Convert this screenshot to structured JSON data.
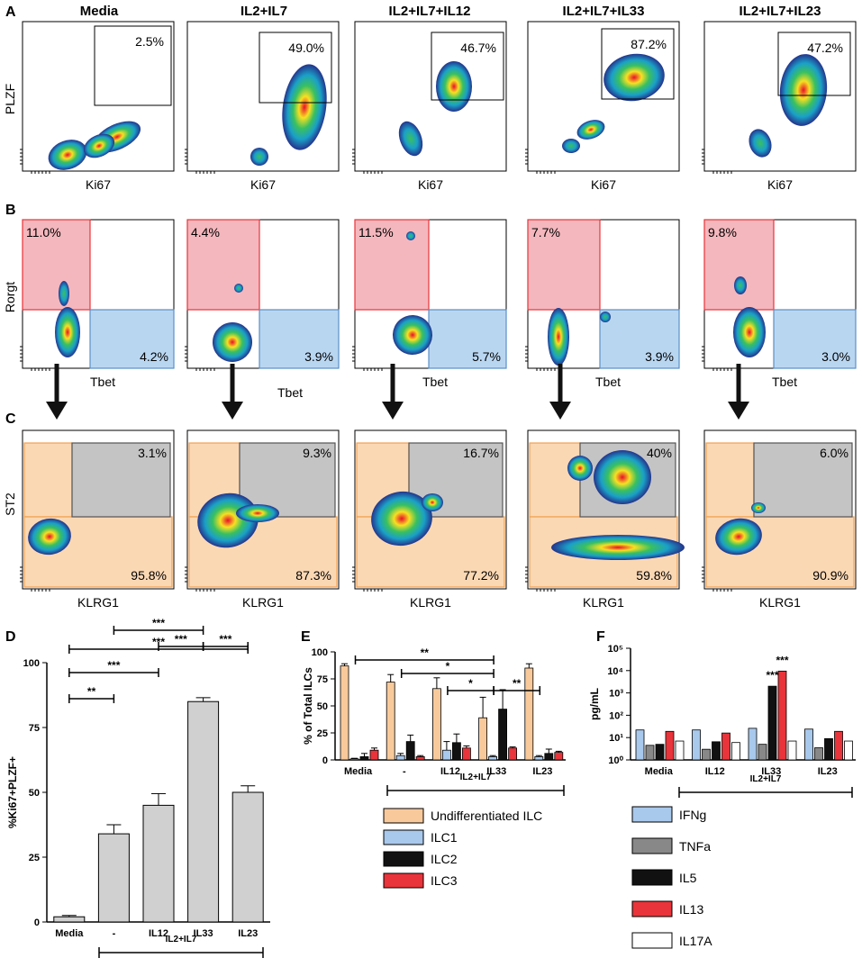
{
  "figure": {
    "panel_letters": [
      "A",
      "B",
      "C",
      "D",
      "E",
      "F"
    ],
    "conditions": [
      "Media",
      "IL2+IL7",
      "IL2+IL7+IL12",
      "IL2+IL7+IL33",
      "IL2+IL7+IL23"
    ]
  },
  "panelA": {
    "ylabel": "PLZF",
    "xlabel": "Ki67",
    "gate_values": [
      "2.5%",
      "49.0%",
      "46.7%",
      "87.2%",
      "47.2%"
    ]
  },
  "panelB": {
    "ylabel": "Rorgt",
    "xlabel": "Tbet",
    "top_left_values": [
      "11.0%",
      "4.4%",
      "11.5%",
      "7.7%",
      "9.8%"
    ],
    "bottom_right_values": [
      "4.2%",
      "3.9%",
      "5.7%",
      "3.9%",
      "3.0%"
    ]
  },
  "panelC": {
    "ylabel": "ST2",
    "xlabel": "KLRG1",
    "top_right_values": [
      "3.1%",
      "9.3%",
      "16.7%",
      "40%",
      "6.0%"
    ],
    "bottom_values": [
      "95.8%",
      "87.3%",
      "77.2%",
      "59.8%",
      "90.9%"
    ]
  },
  "chart_data": [
    {
      "id": "D",
      "type": "bar",
      "ylabel": "%Ki67+PLZF+",
      "categories": [
        "Media",
        "-",
        "IL12",
        "IL33",
        "IL23"
      ],
      "values": [
        2,
        34,
        45,
        85,
        50
      ],
      "errors": [
        0.5,
        3.5,
        4.5,
        1.5,
        2.5
      ],
      "ylim": [
        0,
        100
      ],
      "yticks": [
        "0",
        "25",
        "50",
        "75",
        "100"
      ],
      "group_label": "IL2+IL7",
      "significance": [
        {
          "from": 0,
          "to": 1,
          "label": "**"
        },
        {
          "from": 0,
          "to": 2,
          "label": "***"
        },
        {
          "from": 0,
          "to": 4,
          "label": "***"
        },
        {
          "from": 2,
          "to": 3,
          "label": "***"
        },
        {
          "from": 3,
          "to": 4,
          "label": "***"
        },
        {
          "from": 1,
          "to": 3,
          "label": "***"
        }
      ]
    },
    {
      "id": "E",
      "type": "bar",
      "ylabel": "% of Total ILCs",
      "categories": [
        "Media",
        "-",
        "IL12",
        "IL33",
        "IL23"
      ],
      "series": [
        {
          "name": "Undifferentiated ILC",
          "color": "#f8c99a",
          "values": [
            87,
            72,
            66,
            39,
            85
          ],
          "errors": [
            2,
            7,
            10,
            19,
            4
          ]
        },
        {
          "name": "ILC1",
          "color": "#a8c8ec",
          "values": [
            1,
            4,
            9,
            3,
            3
          ],
          "errors": [
            0.5,
            2,
            8,
            1,
            1
          ]
        },
        {
          "name": "ILC2",
          "color": "#111111",
          "values": [
            3,
            17,
            16,
            47,
            6
          ],
          "errors": [
            3,
            6,
            8,
            18,
            4
          ]
        },
        {
          "name": "ILC3",
          "color": "#e8343a",
          "values": [
            9,
            3,
            11,
            11,
            7
          ],
          "errors": [
            2,
            1,
            2,
            1,
            1
          ]
        }
      ],
      "ylim": [
        0,
        100
      ],
      "yticks": [
        "0",
        "25",
        "50",
        "75",
        "100"
      ],
      "group_label": "IL2+IL7",
      "significance": [
        {
          "from": 0,
          "to": 3,
          "label": "**"
        },
        {
          "from": 1,
          "to": 3,
          "label": "*"
        },
        {
          "from": 2,
          "to": 3,
          "label": "*"
        },
        {
          "from": 3,
          "to": 4,
          "label": "**"
        }
      ]
    },
    {
      "id": "F",
      "type": "bar",
      "scale": "log",
      "ylabel": "pg/mL",
      "categories": [
        "Media",
        "IL12",
        "IL33",
        "IL23"
      ],
      "series": [
        {
          "name": "IFNg",
          "color": "#a8c8ec",
          "values": [
            22,
            22,
            26,
            24
          ]
        },
        {
          "name": "TNFa",
          "color": "#888888",
          "values": [
            4.5,
            3.0,
            5.0,
            3.5
          ]
        },
        {
          "name": "IL5",
          "color": "#111111",
          "values": [
            5,
            6.5,
            2000,
            9
          ]
        },
        {
          "name": "IL13",
          "color": "#e8343a",
          "values": [
            19,
            16,
            9500,
            19
          ]
        },
        {
          "name": "IL17A",
          "color": "#ffffff",
          "values": [
            7,
            6,
            7,
            7
          ]
        }
      ],
      "errors_log": [
        0.05,
        0.05,
        0.05,
        0.05
      ],
      "ylim": [
        1,
        100000
      ],
      "yticks": [
        "10⁰",
        "10¹",
        "10²",
        "10³",
        "10⁴",
        "10⁵"
      ],
      "annotations": [
        {
          "category": 2,
          "series": 2,
          "label": "***"
        },
        {
          "category": 2,
          "series": 3,
          "label": "***"
        }
      ],
      "group_label": "IL2+IL7"
    }
  ]
}
